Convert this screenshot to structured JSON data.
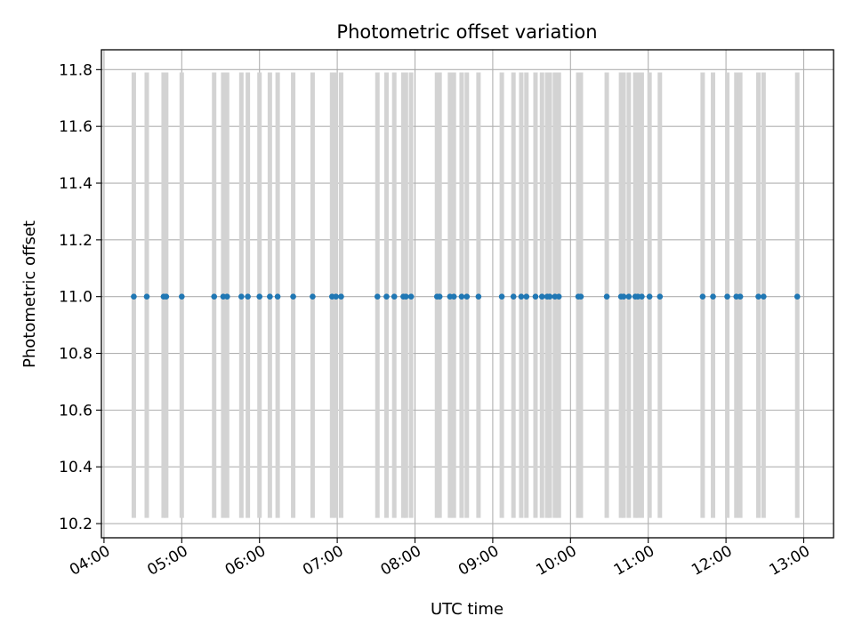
{
  "chart_data": {
    "type": "scatter",
    "title": "Photometric offset variation",
    "xlabel": "UTC time",
    "ylabel": "Photometric offset",
    "xlim": [
      "03:58",
      "13:23"
    ],
    "ylim": [
      10.15,
      11.87
    ],
    "x_ticks": [
      "04:00",
      "05:00",
      "06:00",
      "07:00",
      "08:00",
      "09:00",
      "10:00",
      "11:00",
      "12:00",
      "13:00"
    ],
    "y_ticks": [
      "10.2",
      "10.4",
      "10.6",
      "10.8",
      "11.0",
      "11.2",
      "11.4",
      "11.6",
      "11.8"
    ],
    "grid": true,
    "series": [
      {
        "marker_color": "#1f77b4",
        "error_bar_color": "#d3d3d3",
        "error_bar_low": 10.22,
        "error_bar_high": 11.79,
        "points": [
          {
            "x": "04:23",
            "y": 11.0
          },
          {
            "x": "04:33",
            "y": 11.0
          },
          {
            "x": "04:46",
            "y": 11.0
          },
          {
            "x": "04:48",
            "y": 11.0
          },
          {
            "x": "05:00",
            "y": 11.0
          },
          {
            "x": "05:25",
            "y": 11.0
          },
          {
            "x": "05:32",
            "y": 11.0
          },
          {
            "x": "05:35",
            "y": 11.0
          },
          {
            "x": "05:46",
            "y": 11.0
          },
          {
            "x": "05:51",
            "y": 11.0
          },
          {
            "x": "06:00",
            "y": 11.0
          },
          {
            "x": "06:08",
            "y": 11.0
          },
          {
            "x": "06:14",
            "y": 11.0
          },
          {
            "x": "06:26",
            "y": 11.0
          },
          {
            "x": "06:41",
            "y": 11.0
          },
          {
            "x": "06:56",
            "y": 11.0
          },
          {
            "x": "06:59",
            "y": 11.0
          },
          {
            "x": "07:03",
            "y": 11.0
          },
          {
            "x": "07:31",
            "y": 11.0
          },
          {
            "x": "07:38",
            "y": 11.0
          },
          {
            "x": "07:44",
            "y": 11.0
          },
          {
            "x": "07:51",
            "y": 11.0
          },
          {
            "x": "07:53",
            "y": 11.0
          },
          {
            "x": "07:57",
            "y": 11.0
          },
          {
            "x": "08:17",
            "y": 11.0
          },
          {
            "x": "08:19",
            "y": 11.0
          },
          {
            "x": "08:27",
            "y": 11.0
          },
          {
            "x": "08:30",
            "y": 11.0
          },
          {
            "x": "08:36",
            "y": 11.0
          },
          {
            "x": "08:40",
            "y": 11.0
          },
          {
            "x": "08:49",
            "y": 11.0
          },
          {
            "x": "09:07",
            "y": 11.0
          },
          {
            "x": "09:16",
            "y": 11.0
          },
          {
            "x": "09:22",
            "y": 11.0
          },
          {
            "x": "09:26",
            "y": 11.0
          },
          {
            "x": "09:33",
            "y": 11.0
          },
          {
            "x": "09:38",
            "y": 11.0
          },
          {
            "x": "09:42",
            "y": 11.0
          },
          {
            "x": "09:44",
            "y": 11.0
          },
          {
            "x": "09:48",
            "y": 11.0
          },
          {
            "x": "09:51",
            "y": 11.0
          },
          {
            "x": "10:06",
            "y": 11.0
          },
          {
            "x": "10:08",
            "y": 11.0
          },
          {
            "x": "10:28",
            "y": 11.0
          },
          {
            "x": "10:39",
            "y": 11.0
          },
          {
            "x": "10:41",
            "y": 11.0
          },
          {
            "x": "10:45",
            "y": 11.0
          },
          {
            "x": "10:50",
            "y": 11.0
          },
          {
            "x": "10:52",
            "y": 11.0
          },
          {
            "x": "10:55",
            "y": 11.0
          },
          {
            "x": "11:01",
            "y": 11.0
          },
          {
            "x": "11:09",
            "y": 11.0
          },
          {
            "x": "11:42",
            "y": 11.0
          },
          {
            "x": "11:50",
            "y": 11.0
          },
          {
            "x": "12:01",
            "y": 11.0
          },
          {
            "x": "12:08",
            "y": 11.0
          },
          {
            "x": "12:11",
            "y": 11.0
          },
          {
            "x": "12:25",
            "y": 11.0
          },
          {
            "x": "12:29",
            "y": 11.0
          },
          {
            "x": "12:55",
            "y": 11.0
          }
        ]
      }
    ]
  }
}
